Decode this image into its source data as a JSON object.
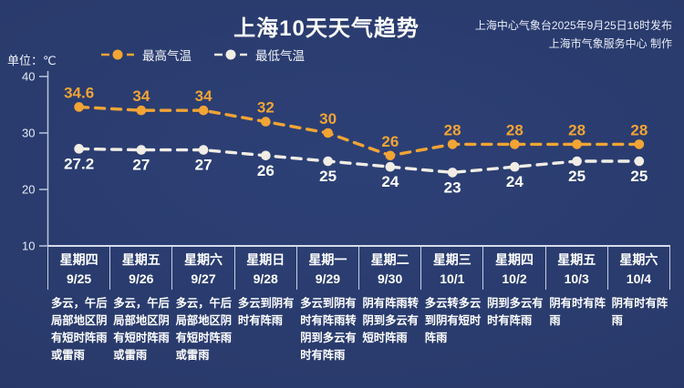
{
  "title": "上海10天天气趋势",
  "source": {
    "line1": "上海中心气象台2025年9月25日16时发布",
    "line2": "上海市气象服务中心 制作"
  },
  "unit_label": "单位：℃",
  "legend": {
    "high_label": "最高气温",
    "low_label": "最低气温"
  },
  "colors": {
    "background": "#293a6b",
    "high": "#f2a434",
    "low": "#f0ede5",
    "axis": "#c6cfe2",
    "text": "#ffffff"
  },
  "days": [
    {
      "weekday": "星期四",
      "date": "9/25",
      "desc": "多云，午后局部地区阴有短时阵雨或雷雨"
    },
    {
      "weekday": "星期五",
      "date": "9/26",
      "desc": "多云，午后局部地区阴有短时阵雨或雷雨"
    },
    {
      "weekday": "星期六",
      "date": "9/27",
      "desc": "多云，午后局部地区阴有短时阵雨或雷雨"
    },
    {
      "weekday": "星期日",
      "date": "9/28",
      "desc": "多云到阴有时有阵雨"
    },
    {
      "weekday": "星期一",
      "date": "9/29",
      "desc": "多云到阴有时有阵雨转阴到多云有时有阵雨"
    },
    {
      "weekday": "星期二",
      "date": "9/30",
      "desc": "阴有阵雨转阴到多云有短时阵雨"
    },
    {
      "weekday": "星期三",
      "date": "10/1",
      "desc": "多云转多云到阴有短时阵雨"
    },
    {
      "weekday": "星期四",
      "date": "10/2",
      "desc": "阴到多云有时有阵雨"
    },
    {
      "weekday": "星期五",
      "date": "10/3",
      "desc": "阴有时有阵雨"
    },
    {
      "weekday": "星期六",
      "date": "10/4",
      "desc": "阴有时有阵雨"
    }
  ],
  "chart_data": {
    "type": "line",
    "title": "上海10天天气趋势",
    "x": [
      "9/25",
      "9/26",
      "9/27",
      "9/28",
      "9/29",
      "9/30",
      "10/1",
      "10/2",
      "10/3",
      "10/4"
    ],
    "series": [
      {
        "name": "最高气温",
        "color": "#f2a434",
        "values": [
          34.6,
          34,
          34,
          32,
          30,
          26,
          28,
          28,
          28,
          28
        ],
        "label_position": "above"
      },
      {
        "name": "最低气温",
        "color": "#f0ede5",
        "label_color": "#ffffff",
        "values": [
          27.2,
          27,
          27,
          26,
          25,
          24,
          23,
          24,
          25,
          25
        ],
        "label_position": "below"
      }
    ],
    "ylim": [
      10,
      40
    ],
    "yticks": [
      40,
      30,
      20,
      10
    ],
    "unit": "℃",
    "line_style": "dashed",
    "grid": false,
    "legend_position": "top-left"
  }
}
